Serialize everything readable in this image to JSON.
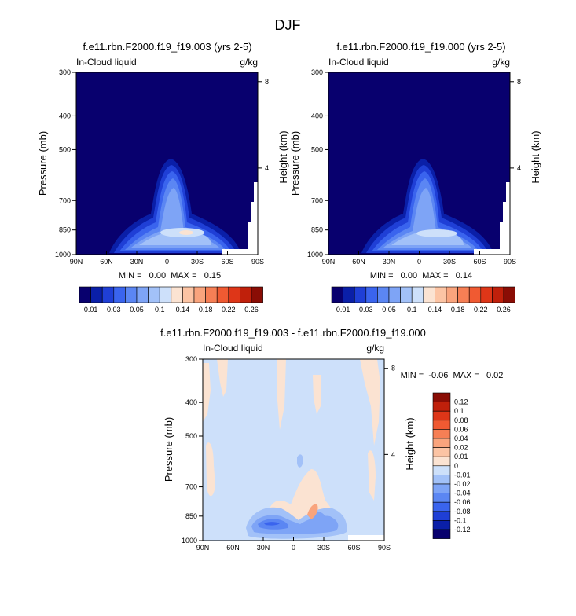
{
  "page_title": "DJF",
  "chart_data": [
    {
      "type": "heatmap",
      "title": "f.e11.rbn.F2000.f19_f19.003 (yrs 2-5)",
      "variable": "In-Cloud liquid",
      "units": "g/kg",
      "xlabel": "",
      "ylabel": "Pressure (mb)",
      "ylabel_right": "Height (km)",
      "x_ticks": [
        "90N",
        "60N",
        "30N",
        "0",
        "30S",
        "60S",
        "90S"
      ],
      "x_values": [
        90,
        60,
        30,
        0,
        -30,
        -60,
        -90
      ],
      "xlim": [
        90,
        -90
      ],
      "y_ticks": [
        "300",
        "400",
        "500",
        "700",
        "850",
        "1000"
      ],
      "y_values": [
        300,
        400,
        500,
        700,
        850,
        1000
      ],
      "ylim": [
        300,
        1000
      ],
      "height_ticks": [
        "8",
        "4"
      ],
      "height_values_km": [
        8,
        4
      ],
      "stats_text": "MIN =   0.00  MAX =   0.15",
      "min": 0.0,
      "max": 0.15
    },
    {
      "type": "heatmap",
      "title": "f.e11.rbn.F2000.f19_f19.000 (yrs 2-5)",
      "variable": "In-Cloud liquid",
      "units": "g/kg",
      "xlabel": "",
      "ylabel": "Pressure (mb)",
      "ylabel_right": "Height (km)",
      "x_ticks": [
        "90N",
        "60N",
        "30N",
        "0",
        "30S",
        "60S",
        "90S"
      ],
      "x_values": [
        90,
        60,
        30,
        0,
        -30,
        -60,
        -90
      ],
      "xlim": [
        90,
        -90
      ],
      "y_ticks": [
        "300",
        "400",
        "500",
        "700",
        "850",
        "1000"
      ],
      "y_values": [
        300,
        400,
        500,
        700,
        850,
        1000
      ],
      "ylim": [
        300,
        1000
      ],
      "height_ticks": [
        "8",
        "4"
      ],
      "height_values_km": [
        8,
        4
      ],
      "stats_text": "MIN =   0.00  MAX =   0.14",
      "min": 0.0,
      "max": 0.14
    },
    {
      "type": "heatmap",
      "title": "f.e11.rbn.F2000.f19_f19.003 - f.e11.rbn.F2000.f19_f19.000",
      "variable": "In-Cloud liquid",
      "units": "g/kg",
      "xlabel": "",
      "ylabel": "Pressure (mb)",
      "ylabel_right": "Height (km)",
      "x_ticks": [
        "90N",
        "60N",
        "30N",
        "0",
        "30S",
        "60S",
        "90S"
      ],
      "x_values": [
        90,
        60,
        30,
        0,
        -30,
        -60,
        -90
      ],
      "xlim": [
        90,
        -90
      ],
      "y_ticks": [
        "300",
        "400",
        "500",
        "700",
        "850",
        "1000"
      ],
      "y_values": [
        300,
        400,
        500,
        700,
        850,
        1000
      ],
      "ylim": [
        300,
        1000
      ],
      "height_ticks": [
        "8",
        "4"
      ],
      "height_values_km": [
        8,
        4
      ],
      "stats_text": "MIN =  -0.06  MAX =   0.02",
      "min": -0.06,
      "max": 0.02
    }
  ],
  "colorbar_top": {
    "labels": [
      "0.01",
      "0.03",
      "0.05",
      "0.1",
      "0.14",
      "0.18",
      "0.22",
      "0.26"
    ],
    "colors": [
      "#08006e",
      "#0a1fa8",
      "#1f3fd6",
      "#3a64ee",
      "#5b86f3",
      "#7ea4f6",
      "#a2c1f8",
      "#cde0fa",
      "#fbe3d2",
      "#fcc4a4",
      "#f9a47d",
      "#f67f55",
      "#f05a32",
      "#de3618",
      "#c0200b",
      "#8a0d05"
    ]
  },
  "colorbar_diff": {
    "labels": [
      "0.12",
      "0.1",
      "0.08",
      "0.06",
      "0.04",
      "0.02",
      "0.01",
      "0",
      "-0.01",
      "-0.02",
      "-0.04",
      "-0.06",
      "-0.08",
      "-0.1",
      "-0.12"
    ],
    "colors": [
      "#8a0d05",
      "#c0200b",
      "#de3618",
      "#f05a32",
      "#f67f55",
      "#f9a47d",
      "#fcc4a4",
      "#fbe3d2",
      "#cde0fa",
      "#a2c1f8",
      "#7ea4f6",
      "#5b86f3",
      "#3a64ee",
      "#1f3fd6",
      "#0a1fa8",
      "#08006e"
    ]
  }
}
